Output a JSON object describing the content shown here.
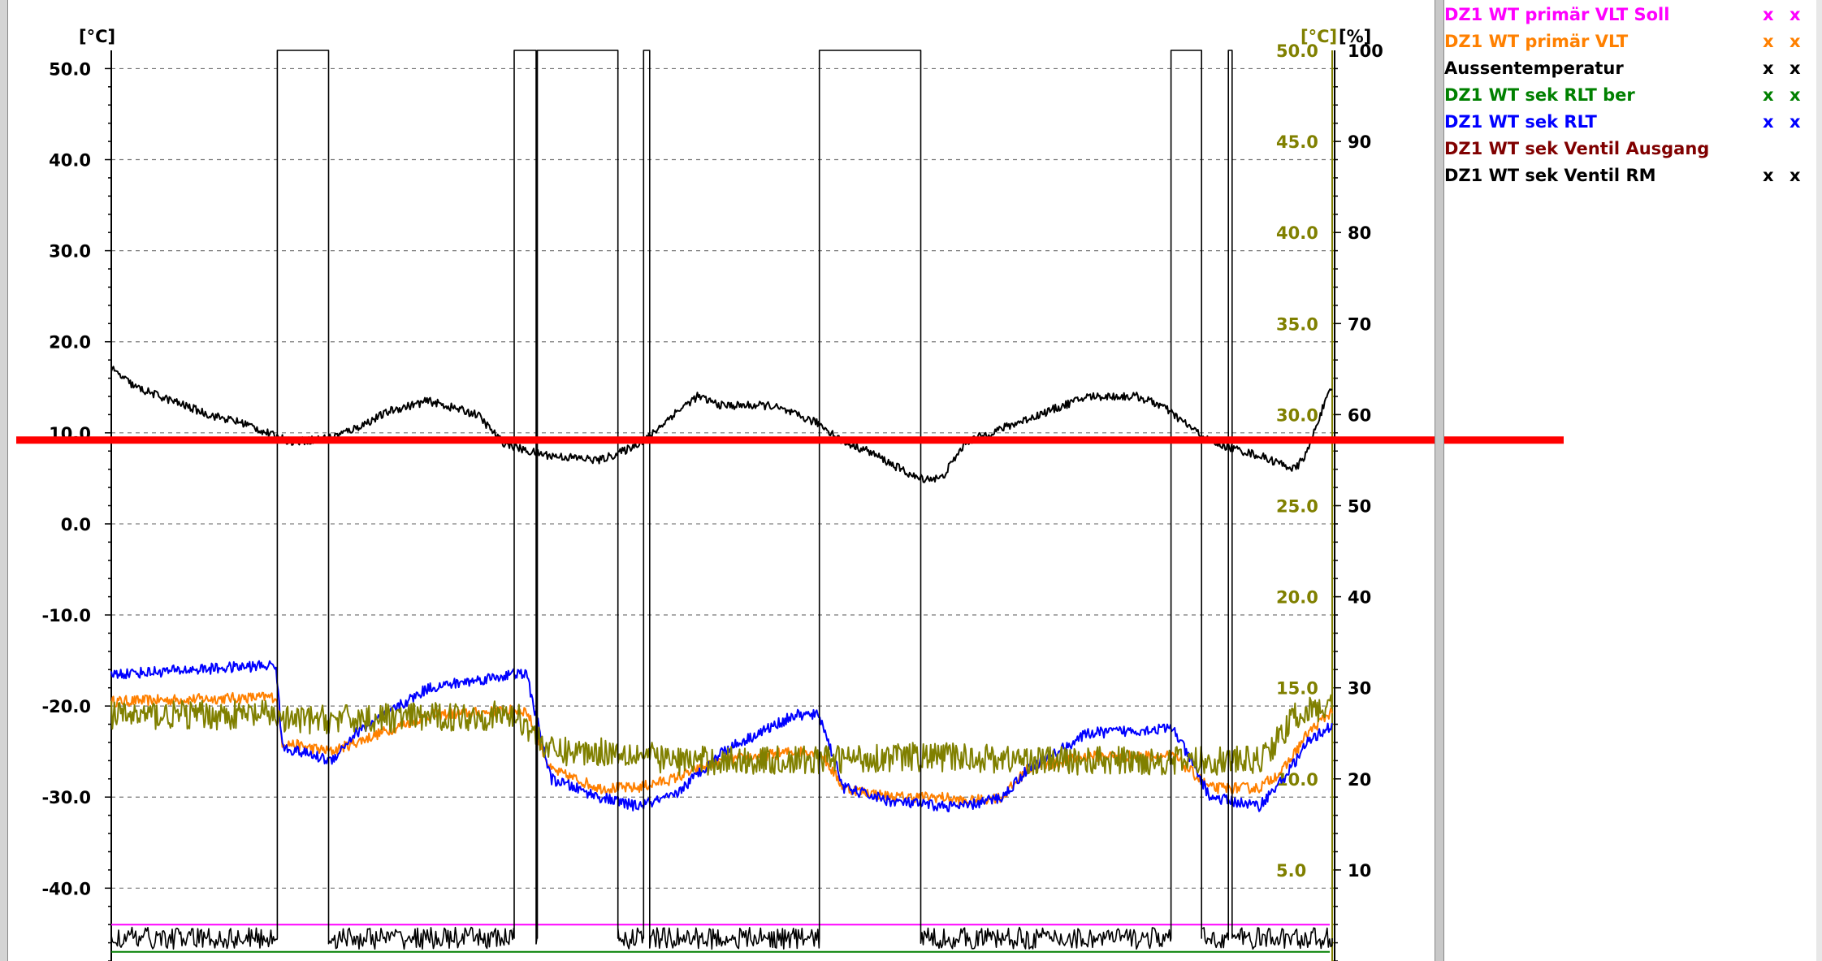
{
  "chart_data": {
    "type": "line",
    "x_range": [
      0,
      1000
    ],
    "axes": {
      "left": {
        "unit_label": "[°C]",
        "min": -48,
        "max": 52,
        "ticks": [
          50.0,
          40.0,
          30.0,
          20.0,
          10.0,
          0.0,
          -10.0,
          -20.0,
          -30.0,
          -40.0
        ],
        "tick_labels": [
          "50.0",
          "40.0",
          "30.0",
          "20.0",
          "10.0",
          "0.0",
          "-10.0",
          "-20.0",
          "-30.0",
          "-40.0"
        ],
        "color": "#000000"
      },
      "middle": {
        "unit_label": "[°C]",
        "min": 0,
        "max": 50,
        "ticks": [
          50.0,
          45.0,
          40.0,
          35.0,
          30.0,
          25.0,
          20.0,
          15.0,
          10.0,
          5.0
        ],
        "tick_labels": [
          "50.0",
          "45.0",
          "40.0",
          "35.0",
          "30.0",
          "25.0",
          "20.0",
          "15.0",
          "10.0",
          "5.0"
        ],
        "color": "#808000"
      },
      "right": {
        "unit_label": "[%]",
        "min": 0,
        "max": 100,
        "ticks": [
          100,
          90,
          80,
          70,
          60,
          50,
          40,
          30,
          20,
          10
        ],
        "tick_labels": [
          "100",
          "90",
          "80",
          "70",
          "60",
          "50",
          "40",
          "30",
          "20",
          "10"
        ],
        "color": "#000000"
      }
    },
    "grid": true,
    "series": [
      {
        "name": "DZ1 WT primär VLT Soll",
        "color": "#ff00ff",
        "axis": "left",
        "x": [
          0,
          1000
        ],
        "y": [
          -44,
          -44
        ],
        "noise": 0
      },
      {
        "name": "DZ1 WT primär VLT",
        "color": "#ff8000",
        "axis": "left",
        "x": [
          0,
          135,
          140,
          180,
          200,
          260,
          330,
          340,
          360,
          400,
          430,
          460,
          500,
          560,
          580,
          600,
          640,
          680,
          700,
          730,
          750,
          800,
          860,
          870,
          900,
          940,
          960,
          980,
          1000
        ],
        "y": [
          -19.5,
          -19,
          -24,
          -25,
          -24,
          -21,
          -20.5,
          -20.5,
          -27,
          -29,
          -29,
          -28,
          -26,
          -25,
          -25,
          -29,
          -30,
          -30,
          -30.5,
          -30,
          -27,
          -25.5,
          -25.5,
          -25.5,
          -29,
          -29,
          -27,
          -23,
          -20.5
        ],
        "noise": 0.6
      },
      {
        "name": "Aussentemperatur",
        "color": "#000000",
        "axis": "left",
        "x": [
          0,
          20,
          40,
          80,
          110,
          136,
          150,
          180,
          200,
          230,
          260,
          300,
          320,
          340,
          360,
          400,
          420,
          440,
          460,
          480,
          500,
          540,
          580,
          600,
          620,
          660,
          680,
          700,
          760,
          800,
          840,
          860,
          880,
          900,
          940,
          960,
          970,
          980,
          990,
          1000
        ],
        "y": [
          17,
          15,
          14,
          12,
          11,
          9.5,
          9,
          9.5,
          10.5,
          12.5,
          13.5,
          12,
          9,
          8,
          7.5,
          7,
          8,
          9.5,
          12,
          14,
          13,
          13,
          11,
          9,
          8,
          5,
          5,
          9,
          12,
          14,
          14,
          13,
          11,
          9,
          7.5,
          6.5,
          6,
          8,
          12,
          15
        ],
        "noise": 0.45
      },
      {
        "name": "DZ1 WT sek RLT ber",
        "color": "#008000",
        "axis": "left",
        "x": [
          0,
          1000
        ],
        "y": [
          -47,
          -47
        ],
        "noise": 0
      },
      {
        "name": "DZ1 WT sek RLT",
        "color": "#0000ff",
        "axis": "left",
        "x": [
          0,
          135,
          140,
          180,
          200,
          260,
          330,
          340,
          360,
          400,
          430,
          460,
          500,
          560,
          580,
          600,
          640,
          680,
          700,
          730,
          750,
          800,
          860,
          870,
          900,
          940,
          960,
          980,
          1000
        ],
        "y": [
          -16.5,
          -15.5,
          -24.5,
          -26,
          -23,
          -18,
          -16.5,
          -16.5,
          -28,
          -30,
          -31,
          -30,
          -25,
          -21,
          -21,
          -29,
          -30.5,
          -31,
          -31,
          -30,
          -27,
          -23,
          -22.5,
          -22.5,
          -30,
          -31,
          -28,
          -24,
          -22
        ],
        "noise": 0.6
      },
      {
        "name": "DZ1 WT sek Ventil Ausgang",
        "color": "#808000",
        "axis": "middle",
        "x": [
          0,
          135,
          140,
          330,
          340,
          360,
          420,
          460,
          500,
          560,
          640,
          700,
          760,
          900,
          920,
          940,
          960,
          970,
          1000
        ],
        "y": [
          13.5,
          13.5,
          13.2,
          13.5,
          13,
          11.5,
          11.5,
          11,
          11,
          11,
          11.2,
          11.2,
          11,
          11,
          11,
          11,
          12.5,
          13.5,
          14
        ],
        "noise": 0.8
      },
      {
        "name": "DZ1 WT sek Ventil RM",
        "color": "#000000",
        "axis": "right",
        "steps": [
          [
            0,
            2.5
          ],
          [
            136,
            100
          ],
          [
            178,
            2.5
          ],
          [
            330,
            100
          ],
          [
            348,
            2.5
          ],
          [
            349,
            100
          ],
          [
            415,
            2.5
          ],
          [
            436,
            100
          ],
          [
            441,
            2.5
          ],
          [
            580,
            100
          ],
          [
            663,
            2.5
          ],
          [
            868,
            100
          ],
          [
            893,
            2.5
          ],
          [
            915,
            100
          ],
          [
            918,
            2.5
          ],
          [
            1000,
            2.5
          ]
        ],
        "noise": 1.2
      }
    ],
    "legend": {
      "placement": "right",
      "items": [
        {
          "name": "DZ1 WT primär VLT Soll",
          "color": "#ff00ff",
          "marks": [
            "x",
            "x"
          ]
        },
        {
          "name": "DZ1 WT primär VLT",
          "color": "#ff8000",
          "marks": [
            "x",
            "x"
          ]
        },
        {
          "name": "Aussentemperatur",
          "color": "#000000",
          "marks": [
            "x",
            "x"
          ]
        },
        {
          "name": "DZ1 WT sek RLT ber",
          "color": "#008000",
          "marks": [
            "x",
            "x"
          ]
        },
        {
          "name": "DZ1 WT sek RLT",
          "color": "#0000ff",
          "marks": [
            "x",
            "x"
          ]
        },
        {
          "name": "DZ1 WT sek Ventil Ausgang",
          "color": "#800000",
          "marks": []
        },
        {
          "name": "DZ1 WT sek Ventil RM",
          "color": "#000000",
          "marks": [
            "x",
            "x"
          ]
        }
      ]
    },
    "marker_line": {
      "color": "#ff0000",
      "value": 9.2,
      "axis": "left"
    }
  }
}
